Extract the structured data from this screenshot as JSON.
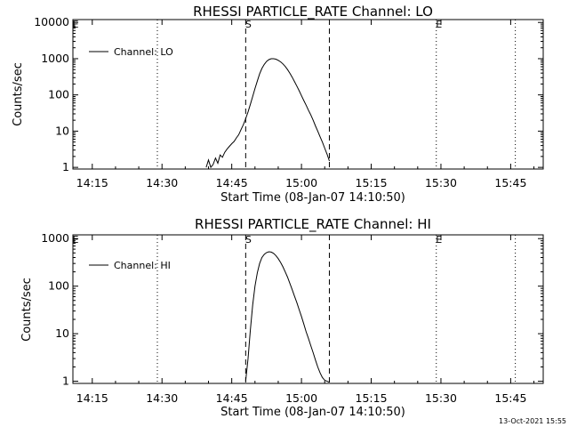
{
  "footer": {
    "timestamp": "13-Oct-2021 15:55"
  },
  "chart_data": [
    {
      "type": "line",
      "title": "RHESSI PARTICLE_RATE Channel: LO",
      "xlabel": "Start Time (08-Jan-07 14:10:50)",
      "ylabel": "Counts/sec",
      "yscale": "log",
      "ylim": [
        0.9,
        12000
      ],
      "xlim": [
        "14:10:50",
        "15:52:00"
      ],
      "xticks": [
        "14:15",
        "14:30",
        "14:45",
        "15:00",
        "15:15",
        "15:30",
        "15:45"
      ],
      "yticks": [
        "1",
        "10",
        "100",
        "1000",
        "10000"
      ],
      "legend": {
        "position": "top-left",
        "entries": [
          "Channel: LO"
        ]
      },
      "markers": [
        {
          "label": "S",
          "time": "14:48",
          "style": "dashed"
        },
        {
          "label": "",
          "time": "15:06",
          "style": "dashed"
        },
        {
          "label": "E",
          "time": "15:29",
          "style": "dotted"
        },
        {
          "label": "",
          "time": "14:29",
          "style": "dotted"
        },
        {
          "label": "",
          "time": "15:46",
          "style": "dotted"
        },
        {
          "label": "E",
          "time": "14:10:50",
          "style": "none"
        }
      ],
      "series": [
        {
          "name": "Channel: LO",
          "x": [
            "14:39:30",
            "14:40:00",
            "14:40:30",
            "14:41:00",
            "14:41:30",
            "14:42:00",
            "14:42:30",
            "14:43:00",
            "14:43:30",
            "14:44:00",
            "14:44:30",
            "14:45:00",
            "14:45:30",
            "14:46:00",
            "14:46:30",
            "14:47:00",
            "14:47:30",
            "14:48:00",
            "14:48:30",
            "14:49:00",
            "14:49:30",
            "14:50:00",
            "14:50:30",
            "14:51:00",
            "14:51:30",
            "14:52:00",
            "14:52:30",
            "14:53:00",
            "14:53:30",
            "14:54:00",
            "14:54:30",
            "14:55:00",
            "14:55:30",
            "14:56:00",
            "14:56:30",
            "14:57:00",
            "14:57:30",
            "14:58:00",
            "14:58:30",
            "14:59:00",
            "14:59:30",
            "15:00:00",
            "15:00:30",
            "15:01:00",
            "15:01:30",
            "15:02:00",
            "15:02:30",
            "15:03:00",
            "15:03:30",
            "15:04:00",
            "15:04:30",
            "15:05:00",
            "15:05:30",
            "15:06:00"
          ],
          "values": [
            1,
            1.6,
            1,
            1.2,
            1.8,
            1.3,
            2.2,
            1.9,
            2.6,
            3.2,
            3.8,
            4.5,
            5.2,
            6.5,
            8,
            11,
            15,
            22,
            34,
            55,
            90,
            150,
            240,
            380,
            540,
            700,
            840,
            940,
            1000,
            1000,
            970,
            900,
            820,
            720,
            610,
            500,
            400,
            310,
            235,
            175,
            130,
            95,
            70,
            52,
            38,
            28,
            20,
            14,
            10,
            7,
            5,
            3.4,
            2.3,
            1.5
          ]
        }
      ]
    },
    {
      "type": "line",
      "title": "RHESSI PARTICLE_RATE Channel: HI",
      "xlabel": "Start Time (08-Jan-07 14:10:50)",
      "ylabel": "Counts/sec",
      "yscale": "log",
      "ylim": [
        0.9,
        1200
      ],
      "xlim": [
        "14:10:50",
        "15:52:00"
      ],
      "xticks": [
        "14:15",
        "14:30",
        "14:45",
        "15:00",
        "15:15",
        "15:30",
        "15:45"
      ],
      "yticks": [
        "1",
        "10",
        "100",
        "1000"
      ],
      "legend": {
        "position": "top-left",
        "entries": [
          "Channel: HI"
        ]
      },
      "markers": [
        {
          "label": "S",
          "time": "14:48",
          "style": "dashed"
        },
        {
          "label": "",
          "time": "15:06",
          "style": "dashed"
        },
        {
          "label": "E",
          "time": "15:29",
          "style": "dotted"
        },
        {
          "label": "",
          "time": "14:29",
          "style": "dotted"
        },
        {
          "label": "",
          "time": "15:46",
          "style": "dotted"
        },
        {
          "label": "E",
          "time": "14:10:50",
          "style": "none"
        }
      ],
      "series": [
        {
          "name": "Channel: HI",
          "x": [
            "14:48:00",
            "14:48:30",
            "14:49:00",
            "14:49:30",
            "14:50:00",
            "14:50:30",
            "14:51:00",
            "14:51:30",
            "14:52:00",
            "14:52:30",
            "14:53:00",
            "14:53:30",
            "14:54:00",
            "14:54:30",
            "14:55:00",
            "14:55:30",
            "14:56:00",
            "14:56:30",
            "14:57:00",
            "14:57:30",
            "14:58:00",
            "14:58:30",
            "14:59:00",
            "14:59:30",
            "15:00:00",
            "15:00:30",
            "15:01:00",
            "15:01:30",
            "15:02:00",
            "15:02:30",
            "15:03:00",
            "15:03:30",
            "15:04:00",
            "15:04:30",
            "15:05:00",
            "15:05:30",
            "15:06:00"
          ],
          "values": [
            1,
            3,
            12,
            40,
            100,
            190,
            300,
            400,
            470,
            510,
            530,
            520,
            490,
            440,
            380,
            315,
            255,
            200,
            155,
            115,
            85,
            62,
            45,
            32,
            23,
            16,
            11,
            8,
            5.6,
            4,
            2.8,
            2,
            1.5,
            1.2,
            1.05,
            1,
            0.95
          ]
        }
      ]
    }
  ]
}
